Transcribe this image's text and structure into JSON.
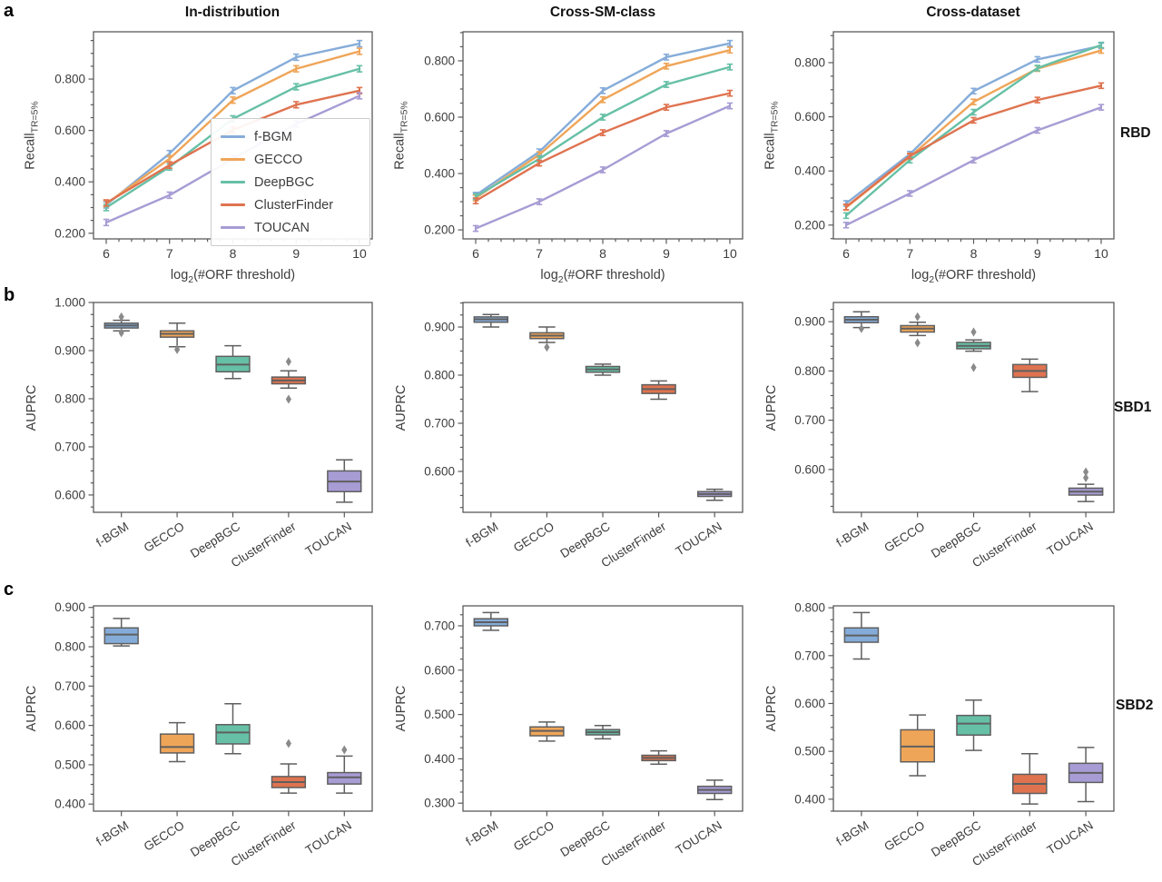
{
  "figure": {
    "panel_labels": [
      "a",
      "b",
      "c"
    ],
    "column_titles": [
      "In-distribution",
      "Cross-SM-class",
      "Cross-dataset"
    ],
    "row_side_labels": [
      "RBD",
      "SBD1",
      "SBD2"
    ],
    "methods": [
      {
        "name": "f-BGM",
        "color": "#85acd9"
      },
      {
        "name": "GECCO",
        "color": "#efa558"
      },
      {
        "name": "DeepBGC",
        "color": "#66c0a6"
      },
      {
        "name": "ClusterFinder",
        "color": "#df7350"
      },
      {
        "name": "TOUCAN",
        "color": "#a79cd4"
      }
    ],
    "line_axis": {
      "ylabel_pre": "Recall",
      "ylabel_sub": "TR=5%",
      "xlabel_pre": "log",
      "xlabel_sub": "2",
      "xlabel_post": "(#ORF threshold)"
    },
    "box_ylabel": "AUPRC",
    "style": {
      "axis_color": "#5a5a5a",
      "tick_label_color": "#3d3d3d",
      "box_edge_color": "#5f5f5f",
      "outlier_color": "#8a8a8a"
    }
  },
  "chart_data": [
    {
      "id": "a1",
      "type": "line",
      "row_label": "RBD",
      "column": "In-distribution",
      "x": [
        6,
        7,
        8,
        9,
        10
      ],
      "xticks": [
        6,
        7,
        8,
        9,
        10
      ],
      "yticks": [
        0.2,
        0.4,
        0.6,
        0.8
      ],
      "ylim": [
        0.178,
        0.984
      ],
      "err": 0.012,
      "legend": true,
      "xlabel": "log2(#ORF threshold)",
      "ylabel": "Recall TR=5%",
      "series": [
        {
          "name": "f-BGM",
          "values": [
            0.31,
            0.51,
            0.755,
            0.885,
            0.938
          ]
        },
        {
          "name": "GECCO",
          "values": [
            0.315,
            0.49,
            0.718,
            0.84,
            0.908
          ]
        },
        {
          "name": "DeepBGC",
          "values": [
            0.3,
            0.458,
            0.645,
            0.77,
            0.84
          ]
        },
        {
          "name": "ClusterFinder",
          "values": [
            0.318,
            0.465,
            0.602,
            0.7,
            0.755
          ]
        },
        {
          "name": "TOUCAN",
          "values": [
            0.242,
            0.348,
            0.49,
            0.625,
            0.735
          ]
        }
      ]
    },
    {
      "id": "a2",
      "type": "line",
      "row_label": "RBD",
      "column": "Cross-SM-class",
      "x": [
        6,
        7,
        8,
        9,
        10
      ],
      "xticks": [
        6,
        7,
        8,
        9,
        10
      ],
      "yticks": [
        0.2,
        0.4,
        0.6,
        0.8
      ],
      "ylim": [
        0.168,
        0.903
      ],
      "err": 0.01,
      "legend": false,
      "xlabel": "log2(#ORF threshold)",
      "ylabel": "Recall TR=5%",
      "series": [
        {
          "name": "f-BGM",
          "values": [
            0.323,
            0.477,
            0.694,
            0.813,
            0.862
          ]
        },
        {
          "name": "GECCO",
          "values": [
            0.313,
            0.467,
            0.662,
            0.781,
            0.838
          ]
        },
        {
          "name": "DeepBGC",
          "values": [
            0.318,
            0.452,
            0.6,
            0.716,
            0.778
          ]
        },
        {
          "name": "ClusterFinder",
          "values": [
            0.303,
            0.437,
            0.545,
            0.635,
            0.685
          ]
        },
        {
          "name": "TOUCAN",
          "values": [
            0.205,
            0.3,
            0.413,
            0.542,
            0.64
          ]
        }
      ]
    },
    {
      "id": "a3",
      "type": "line",
      "row_label": "RBD",
      "column": "Cross-dataset",
      "x": [
        6,
        7,
        8,
        9,
        10
      ],
      "xticks": [
        6,
        7,
        8,
        9,
        10
      ],
      "yticks": [
        0.2,
        0.4,
        0.6,
        0.8
      ],
      "ylim": [
        0.149,
        0.914
      ],
      "err": 0.01,
      "legend": false,
      "xlabel": "log2(#ORF threshold)",
      "ylabel": "Recall TR=5%",
      "series": [
        {
          "name": "f-BGM",
          "values": [
            0.28,
            0.462,
            0.695,
            0.812,
            0.862
          ]
        },
        {
          "name": "GECCO",
          "values": [
            0.265,
            0.452,
            0.655,
            0.778,
            0.845
          ]
        },
        {
          "name": "DeepBGC",
          "values": [
            0.235,
            0.44,
            0.617,
            0.78,
            0.865
          ]
        },
        {
          "name": "ClusterFinder",
          "values": [
            0.267,
            0.455,
            0.587,
            0.662,
            0.715
          ]
        },
        {
          "name": "TOUCAN",
          "values": [
            0.2,
            0.317,
            0.44,
            0.55,
            0.635
          ]
        }
      ]
    },
    {
      "id": "b1",
      "type": "box",
      "row_label": "SBD1",
      "column": "In-distribution",
      "categories": [
        "f-BGM",
        "GECCO",
        "DeepBGC",
        "ClusterFinder",
        "TOUCAN"
      ],
      "yticks": [
        0.6,
        0.7,
        0.8,
        0.9
      ],
      "ylim": [
        0.564,
        1.0
      ],
      "ylabel": "AUPRC",
      "boxes": [
        {
          "name": "f-BGM",
          "whislo": 0.941,
          "q1": 0.947,
          "med": 0.952,
          "q3": 0.957,
          "whishi": 0.963,
          "fliers": [
            0.97,
            0.937
          ]
        },
        {
          "name": "GECCO",
          "whislo": 0.908,
          "q1": 0.928,
          "med": 0.935,
          "q3": 0.941,
          "whishi": 0.957,
          "fliers": [
            0.902
          ]
        },
        {
          "name": "DeepBGC",
          "whislo": 0.842,
          "q1": 0.856,
          "med": 0.871,
          "q3": 0.888,
          "whishi": 0.91,
          "fliers": []
        },
        {
          "name": "ClusterFinder",
          "whislo": 0.822,
          "q1": 0.831,
          "med": 0.838,
          "q3": 0.845,
          "whishi": 0.858,
          "fliers": [
            0.877,
            0.799
          ]
        },
        {
          "name": "TOUCAN",
          "whislo": 0.585,
          "q1": 0.607,
          "med": 0.628,
          "q3": 0.65,
          "whishi": 0.673,
          "fliers": []
        }
      ]
    },
    {
      "id": "b2",
      "type": "box",
      "row_label": "SBD1",
      "column": "Cross-SM-class",
      "categories": [
        "f-BGM",
        "GECCO",
        "DeepBGC",
        "ClusterFinder",
        "TOUCAN"
      ],
      "yticks": [
        0.6,
        0.7,
        0.8,
        0.9
      ],
      "ylim": [
        0.515,
        0.951
      ],
      "ylabel": "AUPRC",
      "boxes": [
        {
          "name": "f-BGM",
          "whislo": 0.9,
          "q1": 0.91,
          "med": 0.916,
          "q3": 0.921,
          "whishi": 0.926,
          "fliers": []
        },
        {
          "name": "GECCO",
          "whislo": 0.868,
          "q1": 0.876,
          "med": 0.882,
          "q3": 0.888,
          "whishi": 0.9,
          "fliers": [
            0.858
          ]
        },
        {
          "name": "DeepBGC",
          "whislo": 0.8,
          "q1": 0.806,
          "med": 0.812,
          "q3": 0.818,
          "whishi": 0.823,
          "fliers": []
        },
        {
          "name": "ClusterFinder",
          "whislo": 0.75,
          "q1": 0.762,
          "med": 0.771,
          "q3": 0.78,
          "whishi": 0.788,
          "fliers": []
        },
        {
          "name": "TOUCAN",
          "whislo": 0.54,
          "q1": 0.548,
          "med": 0.553,
          "q3": 0.558,
          "whishi": 0.563,
          "fliers": []
        }
      ]
    },
    {
      "id": "b3",
      "type": "box",
      "row_label": "SBD1",
      "column": "Cross-dataset",
      "categories": [
        "f-BGM",
        "GECCO",
        "DeepBGC",
        "ClusterFinder",
        "TOUCAN"
      ],
      "yticks": [
        0.6,
        0.7,
        0.8,
        0.9
      ],
      "ylim": [
        0.513,
        0.939
      ],
      "ylabel": "AUPRC",
      "boxes": [
        {
          "name": "f-BGM",
          "whislo": 0.888,
          "q1": 0.898,
          "med": 0.904,
          "q3": 0.91,
          "whishi": 0.92,
          "fliers": [
            0.886
          ]
        },
        {
          "name": "GECCO",
          "whislo": 0.872,
          "q1": 0.879,
          "med": 0.886,
          "q3": 0.892,
          "whishi": 0.899,
          "fliers": [
            0.91,
            0.857
          ]
        },
        {
          "name": "DeepBGC",
          "whislo": 0.84,
          "q1": 0.845,
          "med": 0.851,
          "q3": 0.858,
          "whishi": 0.863,
          "fliers": [
            0.879,
            0.807
          ]
        },
        {
          "name": "ClusterFinder",
          "whislo": 0.758,
          "q1": 0.787,
          "med": 0.8,
          "q3": 0.813,
          "whishi": 0.824,
          "fliers": []
        },
        {
          "name": "TOUCAN",
          "whislo": 0.535,
          "q1": 0.548,
          "med": 0.555,
          "q3": 0.562,
          "whishi": 0.57,
          "fliers": [
            0.583,
            0.595
          ]
        }
      ]
    },
    {
      "id": "c1",
      "type": "box",
      "row_label": "SBD2",
      "column": "In-distribution",
      "categories": [
        "f-BGM",
        "GECCO",
        "DeepBGC",
        "ClusterFinder",
        "TOUCAN"
      ],
      "yticks": [
        0.5,
        0.6,
        0.7,
        0.8
      ],
      "ylim": [
        0.382,
        0.904
      ],
      "ylabel": "AUPRC",
      "boxes": [
        {
          "name": "f-BGM",
          "whislo": 0.802,
          "q1": 0.808,
          "med": 0.831,
          "q3": 0.848,
          "whishi": 0.872,
          "fliers": []
        },
        {
          "name": "GECCO",
          "whislo": 0.508,
          "q1": 0.53,
          "med": 0.545,
          "q3": 0.578,
          "whishi": 0.607,
          "fliers": []
        },
        {
          "name": "DeepBGC",
          "whislo": 0.528,
          "q1": 0.553,
          "med": 0.582,
          "q3": 0.602,
          "whishi": 0.655,
          "fliers": []
        },
        {
          "name": "ClusterFinder",
          "whislo": 0.428,
          "q1": 0.442,
          "med": 0.456,
          "q3": 0.47,
          "whishi": 0.502,
          "fliers": [
            0.554
          ]
        },
        {
          "name": "TOUCAN",
          "whislo": 0.428,
          "q1": 0.451,
          "med": 0.468,
          "q3": 0.48,
          "whishi": 0.522,
          "fliers": [
            0.538
          ]
        }
      ]
    },
    {
      "id": "c2",
      "type": "box",
      "row_label": "SBD2",
      "column": "Cross-SM-class",
      "categories": [
        "f-BGM",
        "GECCO",
        "DeepBGC",
        "ClusterFinder",
        "TOUCAN"
      ],
      "yticks": [
        0.3,
        0.4,
        0.5,
        0.6,
        0.7
      ],
      "ylim": [
        0.282,
        0.745
      ],
      "ylabel": "AUPRC",
      "boxes": [
        {
          "name": "f-BGM",
          "whislo": 0.69,
          "q1": 0.7,
          "med": 0.708,
          "q3": 0.716,
          "whishi": 0.73,
          "fliers": []
        },
        {
          "name": "GECCO",
          "whislo": 0.44,
          "q1": 0.452,
          "med": 0.463,
          "q3": 0.472,
          "whishi": 0.483,
          "fliers": []
        },
        {
          "name": "DeepBGC",
          "whislo": 0.445,
          "q1": 0.454,
          "med": 0.46,
          "q3": 0.466,
          "whishi": 0.475,
          "fliers": []
        },
        {
          "name": "ClusterFinder",
          "whislo": 0.388,
          "q1": 0.396,
          "med": 0.402,
          "q3": 0.408,
          "whishi": 0.418,
          "fliers": []
        },
        {
          "name": "TOUCAN",
          "whislo": 0.308,
          "q1": 0.322,
          "med": 0.33,
          "q3": 0.338,
          "whishi": 0.352,
          "fliers": []
        }
      ]
    },
    {
      "id": "c3",
      "type": "box",
      "row_label": "SBD2",
      "column": "Cross-dataset",
      "categories": [
        "f-BGM",
        "GECCO",
        "DeepBGC",
        "ClusterFinder",
        "TOUCAN"
      ],
      "yticks": [
        0.4,
        0.5,
        0.6,
        0.7,
        0.8
      ],
      "ylim": [
        0.375,
        0.804
      ],
      "ylabel": "AUPRC",
      "boxes": [
        {
          "name": "f-BGM",
          "whislo": 0.693,
          "q1": 0.728,
          "med": 0.742,
          "q3": 0.758,
          "whishi": 0.79,
          "fliers": []
        },
        {
          "name": "GECCO",
          "whislo": 0.449,
          "q1": 0.478,
          "med": 0.51,
          "q3": 0.545,
          "whishi": 0.576,
          "fliers": []
        },
        {
          "name": "DeepBGC",
          "whislo": 0.502,
          "q1": 0.534,
          "med": 0.558,
          "q3": 0.575,
          "whishi": 0.607,
          "fliers": []
        },
        {
          "name": "ClusterFinder",
          "whislo": 0.39,
          "q1": 0.412,
          "med": 0.432,
          "q3": 0.452,
          "whishi": 0.495,
          "fliers": []
        },
        {
          "name": "TOUCAN",
          "whislo": 0.395,
          "q1": 0.435,
          "med": 0.455,
          "q3": 0.475,
          "whishi": 0.508,
          "fliers": []
        }
      ]
    }
  ]
}
